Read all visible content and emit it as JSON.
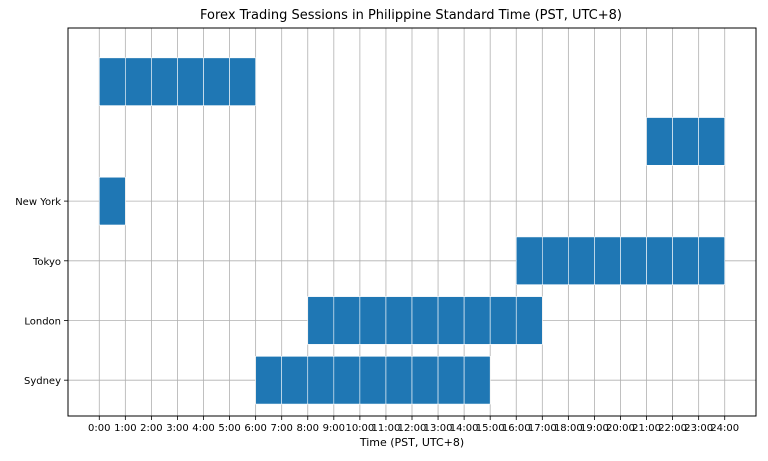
{
  "chart_data": {
    "type": "bar",
    "title": "Forex Trading Sessions in Philippine Standard Time (PST, UTC+8)",
    "xlabel": "Time (PST, UTC+8)",
    "ylabel": "",
    "xlim": [
      -1.2,
      25.2
    ],
    "ylim": [
      -0.6,
      5.9
    ],
    "grid": true,
    "bar_color": "#1f77b4",
    "bar_edge_color": "#ffffff",
    "x_ticks": [
      0,
      1,
      2,
      3,
      4,
      5,
      6,
      7,
      8,
      9,
      10,
      11,
      12,
      13,
      14,
      15,
      16,
      17,
      18,
      19,
      20,
      21,
      22,
      23,
      24
    ],
    "x_tick_labels": [
      "0:00",
      "1:00",
      "2:00",
      "3:00",
      "4:00",
      "5:00",
      "6:00",
      "7:00",
      "8:00",
      "9:00",
      "10:00",
      "11:00",
      "12:00",
      "13:00",
      "14:00",
      "15:00",
      "16:00",
      "17:00",
      "18:00",
      "19:00",
      "20:00",
      "21:00",
      "22:00",
      "23:00",
      "24:00"
    ],
    "y_ticks": [
      0,
      1,
      2,
      3
    ],
    "y_tick_labels": [
      "Sydney",
      "London",
      "Tokyo",
      "New York"
    ],
    "bars": [
      {
        "y": 0,
        "start": 6,
        "end": 15
      },
      {
        "y": 1,
        "start": 8,
        "end": 17
      },
      {
        "y": 2,
        "start": 16,
        "end": 24
      },
      {
        "y": 3,
        "start": 0,
        "end": 1
      },
      {
        "y": 4,
        "start": 21,
        "end": 24
      },
      {
        "y": 5,
        "start": 0,
        "end": 6
      }
    ],
    "bar_height": 0.8,
    "segment_width": 1
  }
}
